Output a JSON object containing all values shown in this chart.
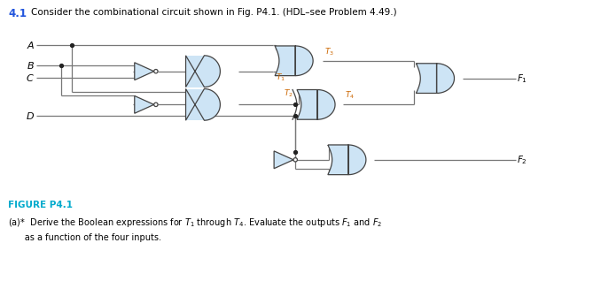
{
  "title_number": "4.1",
  "title_text": "Consider the combinational circuit shown in Fig. P4.1. (HDL–see Problem 4.49.)",
  "figure_label": "FIGURE P4.1",
  "caption_line1": "(a)*  Derive the Boolean expressions for $T_1$ through $T_4$. Evaluate the outputs $F_1$ and $F_2$",
  "caption_line2": "      as a function of the four inputs.",
  "gate_fill": "#cde4f5",
  "gate_edge": "#444444",
  "wire_color": "#777777",
  "label_color": "#cc6600",
  "background": "#ffffff"
}
